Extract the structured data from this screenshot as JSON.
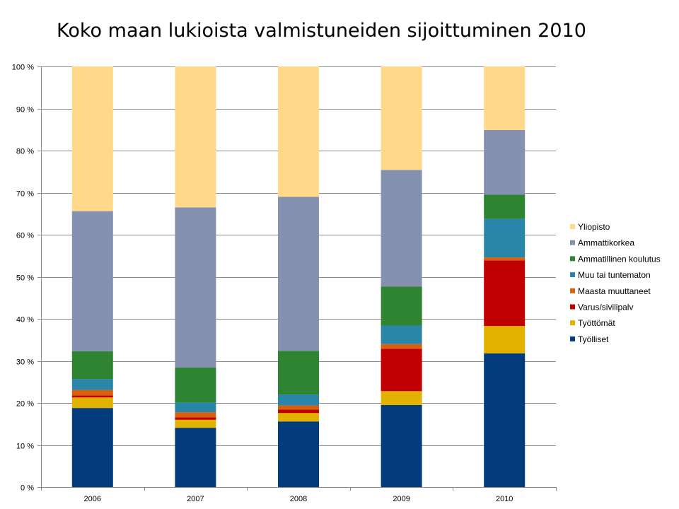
{
  "chart_data": {
    "type": "bar",
    "stacked": true,
    "title": "Koko maan lukioista valmistuneiden sijoittuminen 2010",
    "xlabel": "",
    "ylabel": "",
    "ylim": [
      0,
      100
    ],
    "y_tick_labels": [
      "0 %",
      "10 %",
      "20 %",
      "30 %",
      "40 %",
      "50 %",
      "60 %",
      "70 %",
      "80 %",
      "90 %",
      "100 %"
    ],
    "categories": [
      "2006",
      "2007",
      "2008",
      "2009",
      "2010"
    ],
    "grid": true,
    "legend_position": "right",
    "series": [
      {
        "name": "Työlliset",
        "color": "#023C7C",
        "values": [
          18.8,
          14.1,
          15.6,
          19.5,
          31.8
        ]
      },
      {
        "name": "Työttömät",
        "color": "#E3B200",
        "values": [
          2.5,
          1.9,
          2.0,
          3.3,
          6.5
        ]
      },
      {
        "name": "Varus/sivilipalv",
        "color": "#C00000",
        "values": [
          0.5,
          0.6,
          0.8,
          10.1,
          15.6
        ]
      },
      {
        "name": "Maasta muuttaneet",
        "color": "#D95F0E",
        "values": [
          1.3,
          1.2,
          1.0,
          1.1,
          0.7
        ]
      },
      {
        "name": "Muu tai tuntematon",
        "color": "#2A86A8",
        "values": [
          2.6,
          2.3,
          2.6,
          4.4,
          9.2
        ]
      },
      {
        "name": "Ammatillinen koulutus",
        "color": "#2E8431",
        "values": [
          6.6,
          8.3,
          10.4,
          9.3,
          5.7
        ]
      },
      {
        "name": "Ammattikorkea",
        "color": "#8591B1",
        "values": [
          33.3,
          38.1,
          36.6,
          27.7,
          15.4
        ]
      },
      {
        "name": "Yliopisto",
        "color": "#FFD88A",
        "values": [
          34.4,
          33.5,
          31.0,
          24.6,
          15.1
        ]
      }
    ]
  }
}
